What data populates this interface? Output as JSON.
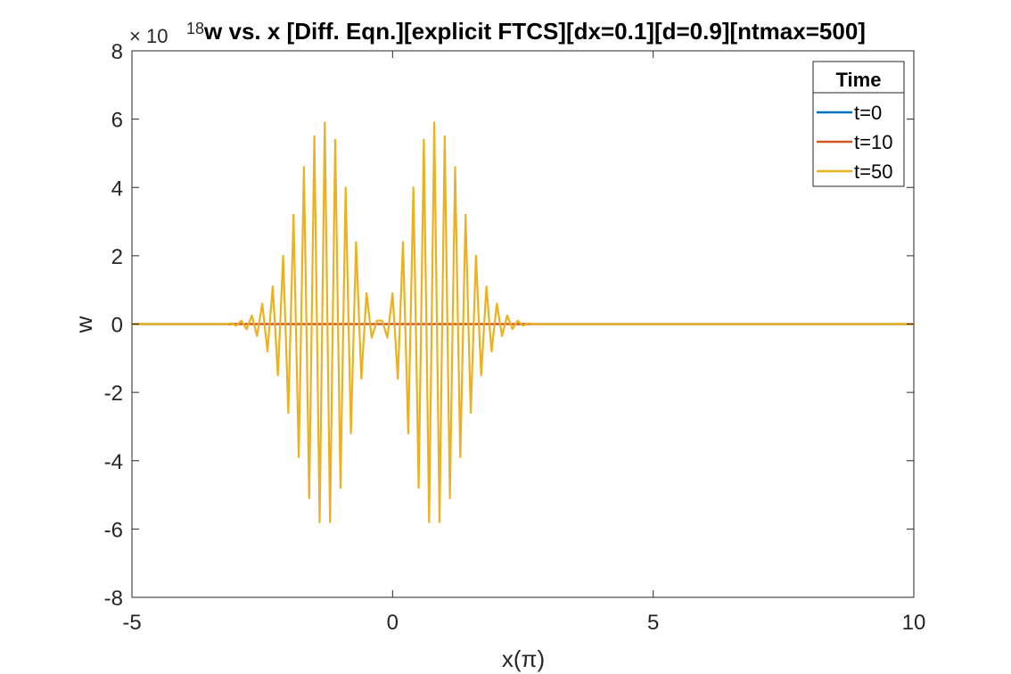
{
  "chart_data": {
    "type": "line",
    "title": "w vs. x [Diff. Eqn.][explicit FTCS][dx=0.1][d=0.9][ntmax=500]",
    "xlabel": "x(π)",
    "ylabel": "w",
    "y_exponent_label": "× 10",
    "y_exponent_power": "18",
    "xlim": [
      -5,
      10
    ],
    "ylim": [
      -8,
      8
    ],
    "x_ticks": [
      -5,
      0,
      5,
      10
    ],
    "x_tick_labels": [
      "-5",
      "0",
      "5",
      "10"
    ],
    "y_ticks": [
      -8,
      -6,
      -4,
      -2,
      0,
      2,
      4,
      6,
      8
    ],
    "y_tick_labels": [
      "-8",
      "-6",
      "-4",
      "-2",
      "0",
      "2",
      "4",
      "6",
      "8"
    ],
    "grid": false,
    "legend": {
      "title": "Time",
      "position": "top-right"
    },
    "colors": {
      "t0": "#0072BD",
      "t10": "#D95319",
      "t50": "#EDB120"
    },
    "series": [
      {
        "name": "t=0",
        "color": "#0072BD",
        "x": [
          -5,
          10
        ],
        "y": [
          0,
          0
        ]
      },
      {
        "name": "t=10",
        "color": "#D95319",
        "x": [
          -5,
          10
        ],
        "y": [
          0,
          0
        ]
      },
      {
        "name": "t=50",
        "color": "#EDB120",
        "x": [
          -5.0,
          -3.2,
          -3.1,
          -3.0,
          -2.9,
          -2.8,
          -2.7,
          -2.6,
          -2.5,
          -2.4,
          -2.3,
          -2.2,
          -2.1,
          -2.0,
          -1.9,
          -1.8,
          -1.7,
          -1.6,
          -1.5,
          -1.4,
          -1.3,
          -1.2,
          -1.1,
          -1.0,
          -0.9,
          -0.8,
          -0.7,
          -0.6,
          -0.5,
          -0.4,
          -0.3,
          -0.2,
          -0.1,
          0.0,
          0.1,
          0.2,
          0.3,
          0.4,
          0.5,
          0.6,
          0.7,
          0.8,
          0.9,
          1.0,
          1.1,
          1.2,
          1.3,
          1.4,
          1.5,
          1.6,
          1.7,
          1.8,
          1.9,
          2.0,
          2.1,
          2.2,
          2.3,
          2.4,
          2.5,
          2.6,
          2.7,
          2.8,
          2.9,
          3.0,
          3.1,
          3.2,
          10.0
        ],
        "y": [
          0,
          0,
          0.02,
          -0.05,
          0.1,
          -0.15,
          0.25,
          -0.35,
          0.6,
          -0.8,
          1.1,
          -1.5,
          2.0,
          -2.6,
          3.2,
          -3.9,
          4.6,
          -5.1,
          5.5,
          -5.8,
          5.9,
          -5.8,
          5.4,
          -4.8,
          4.0,
          -3.2,
          2.4,
          -1.6,
          0.9,
          -0.4,
          0.1,
          0.1,
          -0.4,
          0.9,
          -1.6,
          2.4,
          -3.2,
          4.0,
          -4.8,
          5.4,
          -5.8,
          5.9,
          -5.8,
          5.5,
          -5.1,
          4.6,
          -3.9,
          3.2,
          -2.6,
          2.0,
          -1.5,
          1.1,
          -0.8,
          0.6,
          -0.35,
          0.25,
          -0.15,
          0.1,
          -0.05,
          0.02,
          0,
          0,
          0,
          0,
          0,
          0,
          0
        ]
      }
    ]
  }
}
